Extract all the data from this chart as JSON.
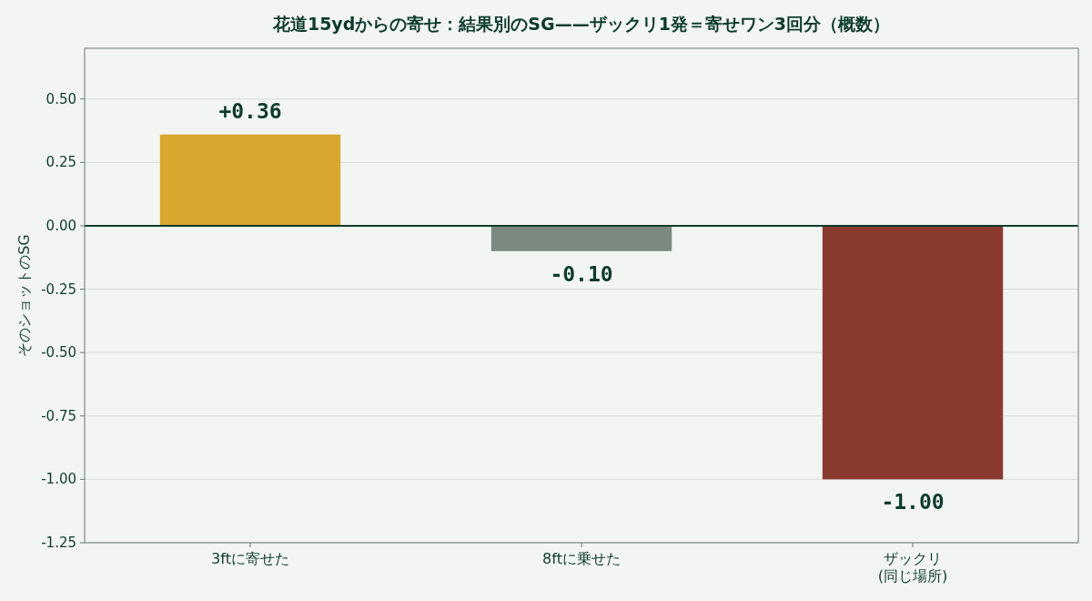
{
  "chart_data": {
    "type": "bar",
    "title": "花道15ydからの寄せ：結果別のSG——ザックリ1発＝寄せワン3回分（概数）",
    "ylabel": "そのショットのSG",
    "categories": [
      "3ftに寄せた",
      "8ftに乗せた",
      "ザックリ\n(同じ場所)"
    ],
    "values": [
      0.36,
      -0.1,
      -1.0
    ],
    "colors": [
      "#d9a62e",
      "#7b8a80",
      "#8a3a2f"
    ],
    "value_labels": [
      "+0.36",
      "-0.10",
      "-1.00"
    ],
    "ylim": [
      -1.25,
      0.7
    ],
    "yticks": [
      {
        "value": -1.25,
        "label": "-1.25"
      },
      {
        "value": -1.0,
        "label": "-1.00"
      },
      {
        "value": -0.75,
        "label": "-0.75"
      },
      {
        "value": -0.5,
        "label": "-0.50"
      },
      {
        "value": -0.25,
        "label": "-0.25"
      },
      {
        "value": 0,
        "label": "0.00"
      },
      {
        "value": 0.25,
        "label": "0.25"
      },
      {
        "value": 0.5,
        "label": "0.50"
      }
    ],
    "ref_lines": [
      {
        "axis": "y",
        "value": 0,
        "color": "#0d3b2e"
      }
    ],
    "grid": "y"
  }
}
